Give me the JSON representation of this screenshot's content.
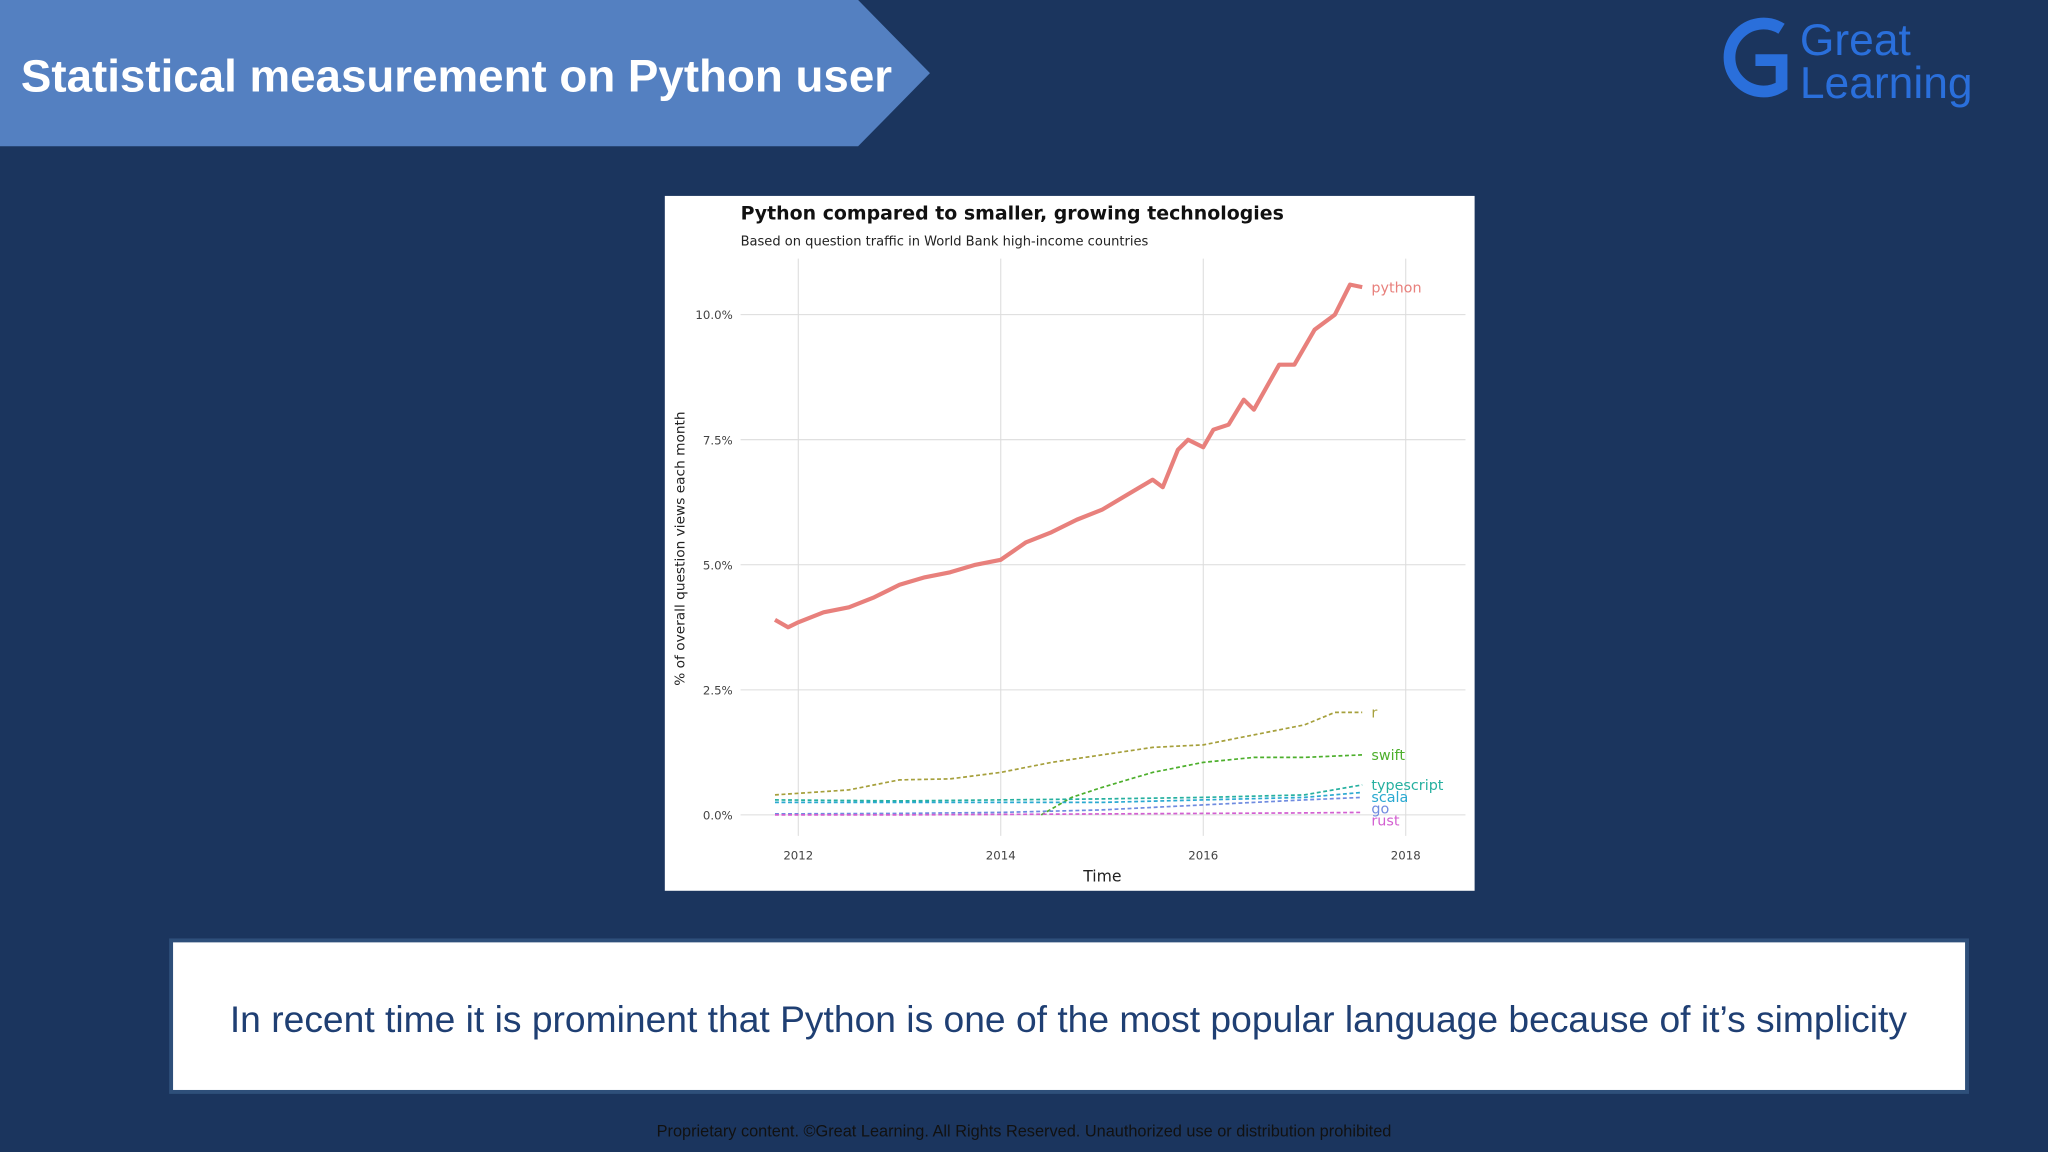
{
  "header": {
    "title": "Statistical measurement on Python user"
  },
  "logo": {
    "line1": "Great",
    "line2": "Learning"
  },
  "chart_data": {
    "type": "line",
    "title": "Python compared to smaller, growing technologies",
    "subtitle": "Based on question traffic in World Bank high-income countries",
    "xlabel": "Time",
    "ylabel": "% of overall question views each month",
    "xlim": [
      2011.43,
      2018.59
    ],
    "ylim": [
      -0.42,
      11.12
    ],
    "xticks": [
      2012,
      2014,
      2016,
      2018
    ],
    "yticks": [
      {
        "value": 0,
        "label": "0.0%"
      },
      {
        "value": 2.5,
        "label": "2.5%"
      },
      {
        "value": 5,
        "label": "5.0%"
      },
      {
        "value": 7.5,
        "label": "7.5%"
      },
      {
        "value": 10,
        "label": "10.0%"
      }
    ],
    "grid": true,
    "series": [
      {
        "name": "python",
        "color": "#e8807c",
        "linestyle": "solid",
        "x": [
          2011.77,
          2011.9,
          2012.0,
          2012.25,
          2012.5,
          2012.75,
          2013.0,
          2013.25,
          2013.5,
          2013.75,
          2014.0,
          2014.25,
          2014.5,
          2014.75,
          2015.0,
          2015.25,
          2015.5,
          2015.6,
          2015.75,
          2015.85,
          2016.0,
          2016.1,
          2016.25,
          2016.4,
          2016.5,
          2016.75,
          2016.9,
          2017.1,
          2017.3,
          2017.45,
          2017.57
        ],
        "values": [
          3.9,
          3.75,
          3.85,
          4.05,
          4.15,
          4.35,
          4.6,
          4.75,
          4.85,
          5.0,
          5.1,
          5.45,
          5.65,
          5.9,
          6.1,
          6.4,
          6.7,
          6.55,
          7.3,
          7.5,
          7.35,
          7.7,
          7.8,
          8.3,
          8.1,
          9.0,
          9.0,
          9.7,
          10.0,
          10.6,
          10.55
        ]
      },
      {
        "name": "r",
        "color": "#a6a03c",
        "linestyle": "dashed",
        "x": [
          2011.77,
          2012.5,
          2013.0,
          2013.5,
          2014.0,
          2014.5,
          2015.0,
          2015.5,
          2016.0,
          2016.5,
          2017.0,
          2017.3,
          2017.57
        ],
        "values": [
          0.4,
          0.5,
          0.7,
          0.72,
          0.85,
          1.05,
          1.2,
          1.35,
          1.4,
          1.6,
          1.8,
          2.05,
          2.05
        ]
      },
      {
        "name": "swift",
        "color": "#4daf2c",
        "linestyle": "dashed",
        "x": [
          2014.4,
          2014.7,
          2015.0,
          2015.5,
          2016.0,
          2016.5,
          2017.0,
          2017.57
        ],
        "values": [
          0.0,
          0.35,
          0.55,
          0.85,
          1.05,
          1.15,
          1.15,
          1.2
        ]
      },
      {
        "name": "typescript",
        "color": "#26b0a0",
        "linestyle": "dashed",
        "x": [
          2011.77,
          2013.0,
          2014.0,
          2015.0,
          2016.0,
          2017.0,
          2017.57
        ],
        "values": [
          0.3,
          0.28,
          0.3,
          0.32,
          0.35,
          0.4,
          0.6
        ]
      },
      {
        "name": "scala",
        "color": "#2aa9d1",
        "linestyle": "dashed",
        "x": [
          2011.77,
          2013.0,
          2014.0,
          2015.0,
          2016.0,
          2017.0,
          2017.57
        ],
        "values": [
          0.25,
          0.25,
          0.25,
          0.25,
          0.3,
          0.35,
          0.45
        ]
      },
      {
        "name": "go",
        "color": "#6f8be0",
        "linestyle": "dashed",
        "x": [
          2011.77,
          2013.0,
          2014.0,
          2015.0,
          2016.0,
          2017.0,
          2017.57
        ],
        "values": [
          0.02,
          0.03,
          0.05,
          0.1,
          0.2,
          0.3,
          0.35
        ]
      },
      {
        "name": "rust",
        "color": "#d35fd1",
        "linestyle": "dashed",
        "x": [
          2011.77,
          2013.0,
          2014.0,
          2015.0,
          2016.0,
          2017.0,
          2017.57
        ],
        "values": [
          0.0,
          0.0,
          0.01,
          0.02,
          0.03,
          0.04,
          0.05
        ]
      }
    ]
  },
  "caption": "In recent time it is prominent that Python is one of the most popular language because of it’s simplicity",
  "footer": "Proprietary content. ©Great Learning. All Rights Reserved. Unauthorized use or distribution prohibited"
}
